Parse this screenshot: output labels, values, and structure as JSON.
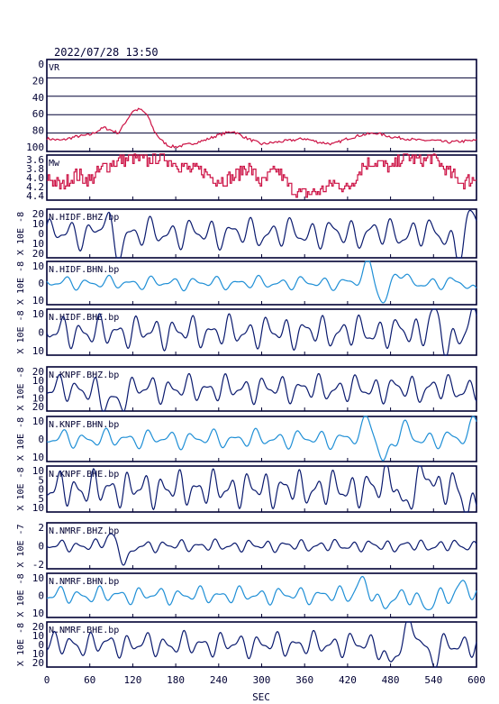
{
  "header": {
    "timestamp": "2022/07/28 13:50"
  },
  "xaxis": {
    "label": "SEC",
    "ticks": [
      "0",
      "60",
      "120",
      "180",
      "240",
      "300",
      "360",
      "420",
      "480",
      "540",
      "600"
    ],
    "range": [
      0,
      600
    ]
  },
  "colors": {
    "frame": "#000033",
    "vr_line": "#cc1144",
    "dark_trace": "#0a1a6e",
    "light_trace": "#1f8fd6",
    "grid": "#000033"
  },
  "chart_data": [
    {
      "type": "line",
      "title": "VR",
      "ylim": [
        0,
        100
      ],
      "yticks": [
        "0",
        "20",
        "40",
        "60",
        "80",
        "100"
      ],
      "grid": true,
      "x": [
        0,
        20,
        40,
        60,
        80,
        100,
        110,
        120,
        130,
        140,
        150,
        160,
        170,
        180,
        200,
        220,
        240,
        260,
        280,
        300,
        320,
        340,
        360,
        380,
        400,
        420,
        440,
        460,
        480,
        500,
        520,
        540,
        560,
        580,
        600
      ],
      "values": [
        14,
        12,
        16,
        18,
        26,
        20,
        32,
        44,
        46,
        40,
        22,
        12,
        6,
        5,
        8,
        12,
        18,
        22,
        14,
        8,
        10,
        12,
        14,
        10,
        8,
        14,
        18,
        20,
        16,
        14,
        12,
        12,
        10,
        11,
        12
      ]
    },
    {
      "type": "line",
      "title": "Mw",
      "ylim": [
        3.6,
        4.4
      ],
      "yticks": [
        "3.6",
        "3.8",
        "4.0",
        "4.2",
        "4.4"
      ],
      "x": [
        0,
        20,
        40,
        60,
        80,
        100,
        120,
        140,
        160,
        180,
        200,
        220,
        240,
        260,
        280,
        300,
        320,
        340,
        360,
        380,
        400,
        420,
        440,
        460,
        480,
        500,
        520,
        540,
        560,
        580,
        600
      ],
      "values": [
        4.0,
        3.85,
        4.05,
        3.95,
        4.2,
        4.3,
        4.35,
        4.3,
        4.4,
        4.25,
        4.15,
        4.1,
        3.95,
        4.0,
        4.2,
        3.9,
        4.15,
        3.8,
        3.7,
        3.75,
        3.9,
        3.8,
        4.2,
        4.3,
        4.15,
        4.4,
        4.3,
        4.35,
        4.1,
        3.9,
        4.0
      ]
    },
    {
      "type": "line",
      "title": "N.HIDF.BHZ.bp",
      "ylabel": "X 10E -8",
      "color": "dark",
      "ylim": [
        -20,
        20
      ],
      "yticks": [
        "20",
        "10",
        "0",
        "10",
        "20"
      ],
      "amp": 8,
      "period": 28,
      "bursts": [
        [
          85,
          18
        ],
        [
          95,
          -20
        ],
        [
          575,
          -18
        ],
        [
          590,
          14
        ]
      ]
    },
    {
      "type": "line",
      "title": "N.HIDF.BHN.bp",
      "ylabel": "X 10E -8",
      "color": "light",
      "ylim": [
        -15,
        15
      ],
      "yticks": [
        "10",
        "0",
        "10"
      ],
      "amp": 3,
      "period": 30,
      "bursts": [
        [
          450,
          14
        ],
        [
          470,
          -14
        ],
        [
          490,
          8
        ],
        [
          600,
          -6
        ]
      ]
    },
    {
      "type": "line",
      "title": "N.HIDF.BHE.bp",
      "ylabel": "X 10E -8",
      "color": "dark",
      "ylim": [
        -20,
        20
      ],
      "yticks": [
        "10",
        "0",
        "10"
      ],
      "amp": 9,
      "period": 26,
      "bursts": [
        [
          540,
          16
        ],
        [
          560,
          -16
        ],
        [
          595,
          14
        ]
      ]
    },
    {
      "type": "line",
      "title": "N.KNPF.BHZ.bp",
      "ylabel": "X 10E -8",
      "color": "dark",
      "ylim": [
        -20,
        20
      ],
      "yticks": [
        "20",
        "10",
        "0",
        "10",
        "20"
      ],
      "amp": 8,
      "period": 26,
      "bursts": [
        [
          80,
          -14
        ],
        [
          100,
          -12
        ]
      ]
    },
    {
      "type": "line",
      "title": "N.KNPF.BHN.bp",
      "ylabel": "X 10E -8",
      "color": "light",
      "ylim": [
        -15,
        15
      ],
      "yticks": [
        "10",
        "0",
        "10"
      ],
      "amp": 4,
      "period": 30,
      "bursts": [
        [
          450,
          14
        ],
        [
          470,
          -15
        ],
        [
          500,
          6
        ],
        [
          600,
          14
        ]
      ]
    },
    {
      "type": "line",
      "title": "N.KNPF.BHE.bp",
      "ylabel": "X 10E -8",
      "color": "dark",
      "ylim": [
        -10,
        10
      ],
      "yticks": [
        "10",
        "5",
        "0",
        "5",
        "10"
      ],
      "amp": 5,
      "period": 24,
      "bursts": [
        [
          480,
          8
        ],
        [
          500,
          -9
        ],
        [
          530,
          9
        ],
        [
          590,
          -9
        ]
      ]
    },
    {
      "type": "line",
      "title": "N.NMRF.BHZ.bp",
      "ylabel": "X 10E -7",
      "color": "dark",
      "ylim": [
        -3,
        3
      ],
      "yticks": [
        "2",
        "0",
        "-2"
      ],
      "amp": 0.5,
      "period": 24,
      "bursts": [
        [
          90,
          1.5
        ],
        [
          110,
          -2.2
        ]
      ]
    },
    {
      "type": "line",
      "title": "N.NMRF.BHN.bp",
      "ylabel": "X 10E -8",
      "color": "light",
      "ylim": [
        -20,
        20
      ],
      "yticks": [
        "10",
        "0",
        "10"
      ],
      "amp": 5,
      "period": 28,
      "bursts": [
        [
          440,
          14
        ],
        [
          470,
          -12
        ],
        [
          530,
          -14
        ],
        [
          580,
          10
        ]
      ]
    },
    {
      "type": "line",
      "title": "N.NMRF.BHE.bp",
      "ylabel": "X 10E -8",
      "color": "dark",
      "ylim": [
        -20,
        20
      ],
      "yticks": [
        "20",
        "10",
        "0",
        "10",
        "20"
      ],
      "amp": 7,
      "period": 26,
      "bursts": [
        [
          480,
          -18
        ],
        [
          510,
          19
        ],
        [
          540,
          -14
        ]
      ]
    }
  ]
}
